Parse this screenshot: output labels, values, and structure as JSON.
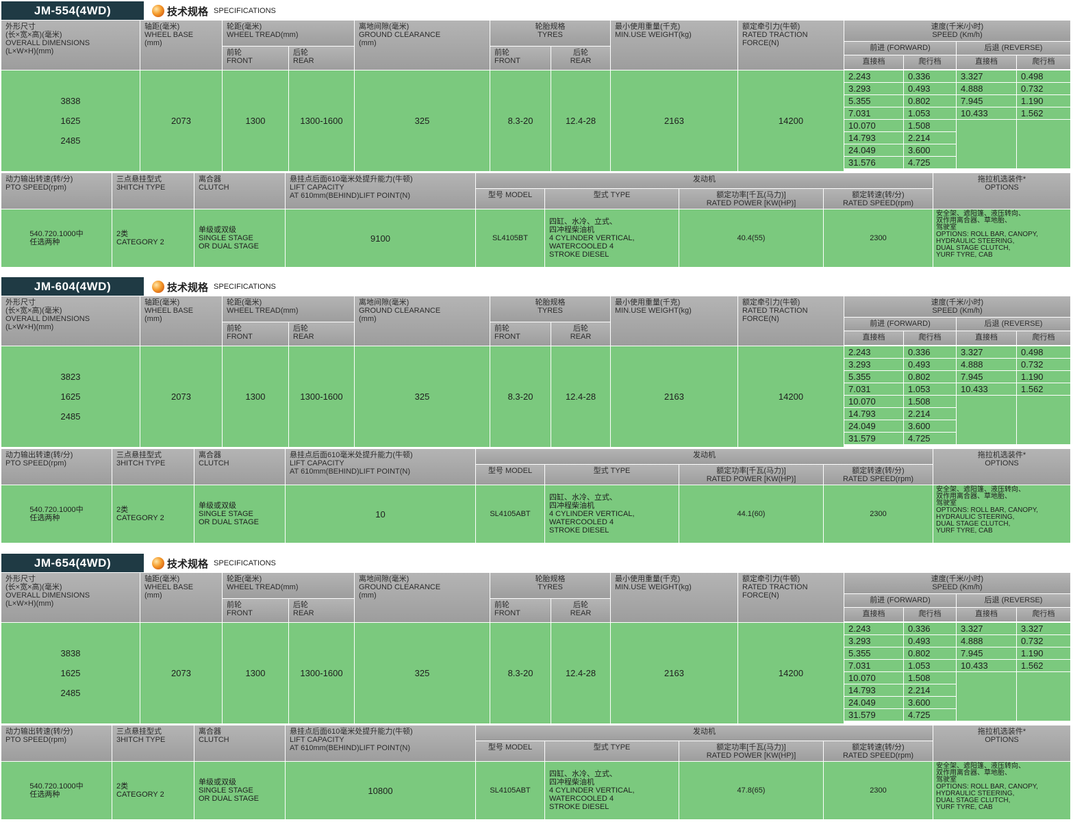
{
  "header_labels": {
    "specifications_cn": "技术规格",
    "specifications_en": "SPECIFICATIONS",
    "overall_dimensions": [
      "外形尺寸",
      "(长×宽×高)(毫米)",
      "OVERALL DIMENSIONS",
      "(L×W×H)(mm)"
    ],
    "wheel_base": [
      "轴距(毫米)",
      "WHEEL BASE",
      "(mm)"
    ],
    "wheel_tread": [
      "轮距(毫米)",
      "WHEEL TREAD(mm)"
    ],
    "tread_front": [
      "前轮",
      "FRONT"
    ],
    "tread_rear": [
      "后轮",
      "REAR"
    ],
    "ground_clearance": [
      "离地间隙(毫米)",
      "GROUND CLEARANCE",
      "(mm)"
    ],
    "tyres": [
      "轮胎规格",
      "TYRES"
    ],
    "tyre_front": [
      "前轮",
      "FRONT"
    ],
    "tyre_rear": [
      "后轮",
      "REAR"
    ],
    "min_weight": [
      "最小使用重量(千克)",
      "MIN.USE WEIGHT(kg)"
    ],
    "traction": [
      "额定牵引力(牛顿)",
      "RATED TRACTION",
      "FORCE(N)"
    ],
    "speed": [
      "速度(千米/小时)",
      "SPEED (Km/h)"
    ],
    "forward": "前进 (FORWARD)",
    "reverse": "后退 (REVERSE)",
    "direct_gear": "直接档",
    "creep_gear": "爬行档",
    "pto": [
      "动力输出转速(转/分)",
      "PTO SPEED(rpm)"
    ],
    "hitch": [
      "三点悬挂型式",
      "3HITCH TYPE"
    ],
    "clutch": [
      "离合器",
      "CLUTCH"
    ],
    "lift": [
      "悬挂点后面610毫米处提升能力(牛顿)",
      "LIFT CAPACITY",
      "AT 610mm(BEHIND)LIFT POINT(N)"
    ],
    "engine": "发动机",
    "model": "型号 MODEL",
    "type": "型式 TYPE",
    "rated_power": [
      "额定功率[千瓦(马力)]",
      "RATED POWER [KW(HP)]"
    ],
    "rated_speed": [
      "额定转速(转/分)",
      "RATED SPEED(rpm)"
    ],
    "options": [
      "拖拉机选装件*",
      "OPTIONS"
    ]
  },
  "models": [
    {
      "name": "JM-554(4WD)",
      "dimensions": [
        "3838",
        "1625",
        "2485"
      ],
      "wheel_base": "2073",
      "tread_front": "1300",
      "tread_rear": "1300-1600",
      "ground_clearance": "325",
      "tyre_front": "8.3-20",
      "tyre_rear": "12.4-28",
      "min_weight": "2163",
      "traction": "14200",
      "forward_direct": [
        "2.243",
        "3.293",
        "5.355",
        "7.031",
        "10.070",
        "14.793",
        "24.049",
        "31.576"
      ],
      "forward_creep": [
        "0.336",
        "0.493",
        "0.802",
        "1.053",
        "1.508",
        "2.214",
        "3.600",
        "4.725"
      ],
      "reverse_direct": [
        "3.327",
        "4.888",
        "7.945",
        "10.433"
      ],
      "reverse_creep": [
        "0.498",
        "0.732",
        "1.190",
        "1.562"
      ],
      "pto": [
        "540.720.1000中",
        "任选两种"
      ],
      "hitch": [
        "2类",
        "CATEGORY 2"
      ],
      "clutch": [
        "单级或双级",
        "SINGLE STAGE",
        "OR DUAL STAGE"
      ],
      "lift": "9100",
      "engine_model": "SL4105BT",
      "engine_type": [
        "四缸、水冷、立式、",
        "四冲程柴油机",
        "4 CYLINDER VERTICAL,",
        "WATERCOOLED 4",
        "STROKE DIESEL"
      ],
      "rated_power": "40.4(55)",
      "rated_speed": "2300",
      "options": [
        "安全架、遮阳篷、液压转向、",
        "双作用离合器、草地胎、",
        "驾驶室",
        "OPTIONS: ROLL BAR, CANOPY,",
        "HYDRAULIC STEERING,",
        "DUAL STAGE CLUTCH,",
        "YURF TYRE, CAB"
      ]
    },
    {
      "name": "JM-604(4WD)",
      "dimensions": [
        "3823",
        "1625",
        "2485"
      ],
      "wheel_base": "2073",
      "tread_front": "1300",
      "tread_rear": "1300-1600",
      "ground_clearance": "325",
      "tyre_front": "8.3-20",
      "tyre_rear": "12.4-28",
      "min_weight": "2163",
      "traction": "14200",
      "forward_direct": [
        "2.243",
        "3.293",
        "5.355",
        "7.031",
        "10.070",
        "14.793",
        "24.049",
        "31.579"
      ],
      "forward_creep": [
        "0.336",
        "0.493",
        "0.802",
        "1.053",
        "1.508",
        "2.214",
        "3.600",
        "4.725"
      ],
      "reverse_direct": [
        "3.327",
        "4.888",
        "7.945",
        "10.433"
      ],
      "reverse_creep": [
        "0.498",
        "0.732",
        "1.190",
        "1.562"
      ],
      "pto": [
        "540.720.1000中",
        "任选两种"
      ],
      "hitch": [
        "2类",
        "CATEGORY 2"
      ],
      "clutch": [
        "单级或双级",
        "SINGLE STAGE",
        "OR DUAL STAGE"
      ],
      "lift": "10",
      "engine_model": "SL4105ABT",
      "engine_type": [
        "四缸、水冷、立式、",
        "四冲程柴油机",
        "4 CYLINDER VERTICAL,",
        "WATERCOOLED 4",
        "STROKE DIESEL"
      ],
      "rated_power": "44.1(60)",
      "rated_speed": "2300",
      "options": [
        "安全架、遮阳篷、液压转向、",
        "双作用离合器、草地胎、",
        "驾驶室",
        "OPTIONS: ROLL BAR, CANOPY,",
        "HYDRAULIC STEERING,",
        "DUAL STAGE CLUTCH,",
        "YURF TYRE, CAB"
      ]
    },
    {
      "name": "JM-654(4WD)",
      "dimensions": [
        "3838",
        "1625",
        "2485"
      ],
      "wheel_base": "2073",
      "tread_front": "1300",
      "tread_rear": "1300-1600",
      "ground_clearance": "325",
      "tyre_front": "8.3-20",
      "tyre_rear": "12.4-28",
      "min_weight": "2163",
      "traction": "14200",
      "forward_direct": [
        "2.243",
        "3.293",
        "5.355",
        "7.031",
        "10.070",
        "14.793",
        "24.049",
        "31.579"
      ],
      "forward_creep": [
        "0.336",
        "0.493",
        "0.802",
        "1.053",
        "1.508",
        "2.214",
        "3.600",
        "4.725"
      ],
      "reverse_direct": [
        "3.327",
        "4.888",
        "7.945",
        "10.433"
      ],
      "reverse_creep": [
        "3.327",
        "0.732",
        "1.190",
        "1.562"
      ],
      "pto": [
        "540.720.1000中",
        "任选两种"
      ],
      "hitch": [
        "2类",
        "CATEGORY 2"
      ],
      "clutch": [
        "单级或双级",
        "SINGLE STAGE",
        "OR DUAL STAGE"
      ],
      "lift": "10800",
      "engine_model": "SL4105ABT",
      "engine_type": [
        "四缸、水冷、立式、",
        "四冲程柴油机",
        "4 CYLINDER VERTICAL,",
        "WATERCOOLED 4",
        "STROKE DIESEL"
      ],
      "rated_power": "47.8(65)",
      "rated_speed": "2300",
      "options": [
        "安全架、遮阳篷、液压转向、",
        "双作用离合器、草地胎、",
        "驾驶室",
        "OPTIONS: ROLL BAR, CANOPY,",
        "HYDRAULIC STEERING,",
        "DUAL STAGE CLUTCH,",
        "YURF TYRE, CAB"
      ]
    }
  ],
  "colors": {
    "header_gray": "#a8a8a8",
    "value_green": "#7bc97e",
    "title_tab": "#1f3a44",
    "orb": "#f59a2a"
  }
}
